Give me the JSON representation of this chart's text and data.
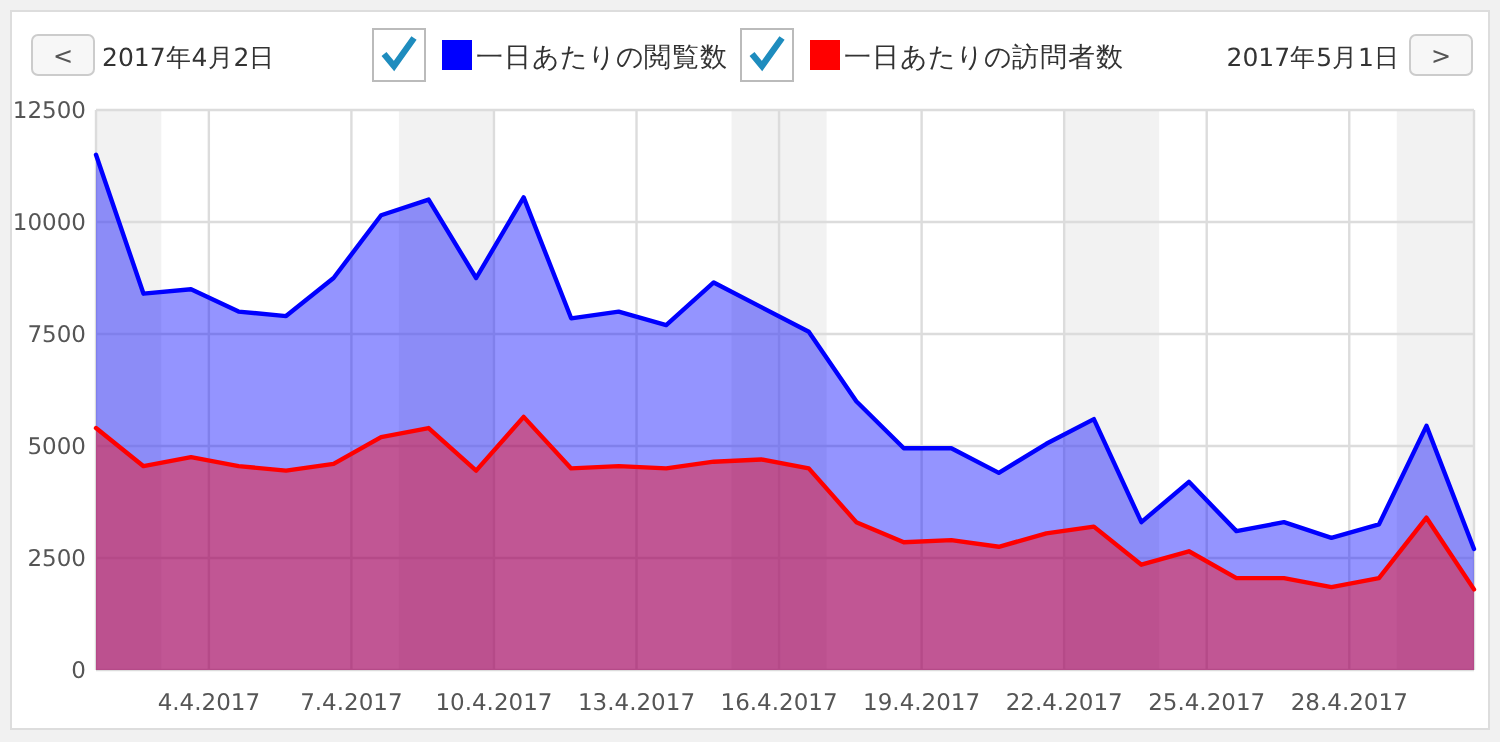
{
  "chart_data": {
    "type": "area",
    "legend": "top",
    "grid": true,
    "x": [
      "2017-04-02",
      "2017-04-03",
      "2017-04-04",
      "2017-04-05",
      "2017-04-06",
      "2017-04-07",
      "2017-04-08",
      "2017-04-09",
      "2017-04-10",
      "2017-04-11",
      "2017-04-12",
      "2017-04-13",
      "2017-04-14",
      "2017-04-15",
      "2017-04-16",
      "2017-04-17",
      "2017-04-18",
      "2017-04-19",
      "2017-04-20",
      "2017-04-21",
      "2017-04-22",
      "2017-04-23",
      "2017-04-24",
      "2017-04-25",
      "2017-04-26",
      "2017-04-27",
      "2017-04-28",
      "2017-04-29",
      "2017-04-30",
      "2017-05-01"
    ],
    "series": [
      {
        "name": "一日あたりの閲覧数",
        "color": "#0000ff",
        "values": [
          11500,
          8400,
          8500,
          8000,
          7900,
          8750,
          10150,
          10500,
          8750,
          10550,
          7850,
          8000,
          7700,
          8650,
          8100,
          7550,
          6000,
          4950,
          4950,
          4400,
          5050,
          5600,
          3300,
          4200,
          3100,
          3300,
          2950,
          3250,
          5450,
          2700
        ]
      },
      {
        "name": "一日あたりの訪問者数",
        "color": "#ff0000",
        "values": [
          5400,
          4550,
          4750,
          4550,
          4450,
          4600,
          5200,
          5400,
          4450,
          5650,
          4500,
          4550,
          4500,
          4650,
          4700,
          4500,
          3300,
          2850,
          2900,
          2750,
          3050,
          3200,
          2350,
          2650,
          2050,
          2050,
          1850,
          2050,
          3400,
          1800
        ]
      }
    ],
    "xlim": [
      "2017-04-02",
      "2017-05-01"
    ],
    "xticks": [
      {
        "value": "2017-04-04T09:00",
        "label": "4.4.2017"
      },
      {
        "value": "2017-04-07T09:00",
        "label": "7.4.2017"
      },
      {
        "value": "2017-04-10T09:00",
        "label": "10.4.2017"
      },
      {
        "value": "2017-04-13T09:00",
        "label": "13.4.2017"
      },
      {
        "value": "2017-04-16T09:00",
        "label": "16.4.2017"
      },
      {
        "value": "2017-04-19T09:00",
        "label": "19.4.2017"
      },
      {
        "value": "2017-04-22T09:00",
        "label": "22.4.2017"
      },
      {
        "value": "2017-04-25T09:00",
        "label": "25.4.2017"
      },
      {
        "value": "2017-04-28T09:00",
        "label": "28.4.2017"
      }
    ],
    "ylim": [
      0,
      12500
    ],
    "yticks": [
      0,
      2500,
      5000,
      7500,
      10000,
      12500
    ],
    "bands": [
      {
        "axis": "x",
        "from": "2017-04-02",
        "to": "2017-04-03T09:00",
        "color": "#f2f2f2"
      },
      {
        "axis": "x",
        "from": "2017-04-08T09:00",
        "to": "2017-04-10T09:00",
        "color": "#f2f2f2"
      },
      {
        "axis": "x",
        "from": "2017-04-15T09:00",
        "to": "2017-04-17T09:00",
        "color": "#f2f2f2"
      },
      {
        "axis": "x",
        "from": "2017-04-22T09:00",
        "to": "2017-04-24T09:00",
        "color": "#f2f2f2"
      },
      {
        "axis": "x",
        "from": "2017-04-29T09:00",
        "to": "2017-05-01",
        "color": "#f2f2f2"
      }
    ],
    "annotations": [
      "<",
      "2017年4月2日",
      "2017年5月1日",
      ">"
    ]
  }
}
